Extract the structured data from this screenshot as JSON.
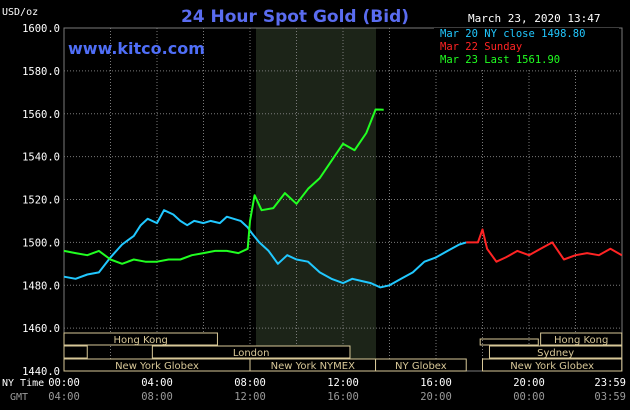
{
  "title": "24 Hour Spot Gold (Bid)",
  "units_label": "USD/oz",
  "timestamp": "March 23, 2020 13:47",
  "watermark": "www.kitco.com",
  "colors": {
    "background": "#000000",
    "title": "#5a6cf0",
    "watermark": "#4f6ef7",
    "grid": "#7a7a7a",
    "axis_text": "#ffffff",
    "nymex_shade": "#1c2418",
    "session_box": "#d8c898",
    "session_fill": "#000000"
  },
  "legend": [
    {
      "label": "Mar 20 NY close 1498.80",
      "color": "#21c8ff"
    },
    {
      "label": "Mar 22 Sunday",
      "color": "#ff2424"
    },
    {
      "label": "Mar 23 Last 1561.90",
      "color": "#21ff21"
    }
  ],
  "sessions": [
    {
      "label": "Hong Kong"
    },
    {
      "label": "London"
    },
    {
      "label": "New York Globex"
    },
    {
      "label": "New York NYMEX"
    },
    {
      "label": "NY Globex"
    },
    {
      "label": "Hong Kong"
    },
    {
      "label": "Sydney"
    },
    {
      "label": "New York Globex"
    }
  ],
  "xaxis": {
    "row1_label": "NY Time",
    "row2_label": "GMT",
    "row1_ticks": [
      "00:00",
      "04:00",
      "08:00",
      "12:00",
      "16:00",
      "20:00",
      "23:59"
    ],
    "row2_ticks": [
      "04:00",
      "08:00",
      "12:00",
      "16:00",
      "20:00",
      "00:00",
      "03:59"
    ]
  },
  "chart_data": {
    "type": "line",
    "title": "24 Hour Spot Gold (Bid)",
    "ylabel": "USD/oz",
    "xlabel": "NY Time",
    "ylim": [
      1440,
      1600
    ],
    "xlim_hours": [
      0,
      24
    ],
    "yticks": [
      "1440.0",
      "1460.0",
      "1480.0",
      "1500.0",
      "1520.0",
      "1540.0",
      "1560.0",
      "1580.0",
      "1600.0"
    ],
    "grid": true,
    "legend_position": "top-right",
    "series": [
      {
        "name": "Mar 20 NY close 1498.80",
        "color": "#21c8ff",
        "x": [
          0,
          0.5,
          1.0,
          1.5,
          2.0,
          2.5,
          3.0,
          3.3,
          3.6,
          4.0,
          4.3,
          4.7,
          5.0,
          5.3,
          5.6,
          6.0,
          6.3,
          6.7,
          7.0,
          7.3,
          7.6,
          7.9,
          8.1,
          8.4,
          8.8,
          9.2,
          9.6,
          10.0,
          10.5,
          11.0,
          11.5,
          12.0,
          12.4,
          12.8,
          13.2,
          13.6,
          14.0,
          14.5,
          15.0,
          15.5,
          16.0,
          16.5,
          17.0,
          17.3
        ],
        "values": [
          1484,
          1483,
          1485,
          1486,
          1493,
          1499,
          1503,
          1508,
          1511,
          1509,
          1515,
          1513,
          1510,
          1508,
          1510,
          1509,
          1510,
          1509,
          1512,
          1511,
          1510,
          1507,
          1504,
          1500,
          1496,
          1490,
          1494,
          1492,
          1491,
          1486,
          1483,
          1481,
          1483,
          1482,
          1481,
          1479,
          1480,
          1483,
          1486,
          1491,
          1493,
          1496,
          1499,
          1500
        ]
      },
      {
        "name": "Mar 22 Sunday",
        "color": "#ff2424",
        "x": [
          17.3,
          17.6,
          17.8,
          18.0,
          18.2,
          18.6,
          19.0,
          19.5,
          20.0,
          20.5,
          21.0,
          21.5,
          22.0,
          22.5,
          23.0,
          23.5,
          23.99
        ],
        "values": [
          1500,
          1500,
          1500,
          1506,
          1497,
          1491,
          1493,
          1496,
          1494,
          1497,
          1500,
          1492,
          1494,
          1495,
          1494,
          1497,
          1494
        ]
      },
      {
        "name": "Mar 23 Last 1561.90",
        "color": "#21ff21",
        "x": [
          0,
          0.5,
          1.0,
          1.5,
          2.0,
          2.5,
          3.0,
          3.5,
          4.0,
          4.5,
          5.0,
          5.5,
          6.0,
          6.5,
          7.0,
          7.5,
          7.9,
          8.0,
          8.2,
          8.5,
          9.0,
          9.5,
          10.0,
          10.5,
          11.0,
          11.5,
          12.0,
          12.5,
          13.0,
          13.4,
          13.75
        ],
        "values": [
          1496,
          1495,
          1494,
          1496,
          1492,
          1490,
          1492,
          1491,
          1491,
          1492,
          1492,
          1494,
          1495,
          1496,
          1496,
          1495,
          1497,
          1510,
          1522,
          1515,
          1516,
          1523,
          1518,
          1525,
          1530,
          1538,
          1546,
          1543,
          1551,
          1562,
          1561.9
        ]
      }
    ]
  }
}
